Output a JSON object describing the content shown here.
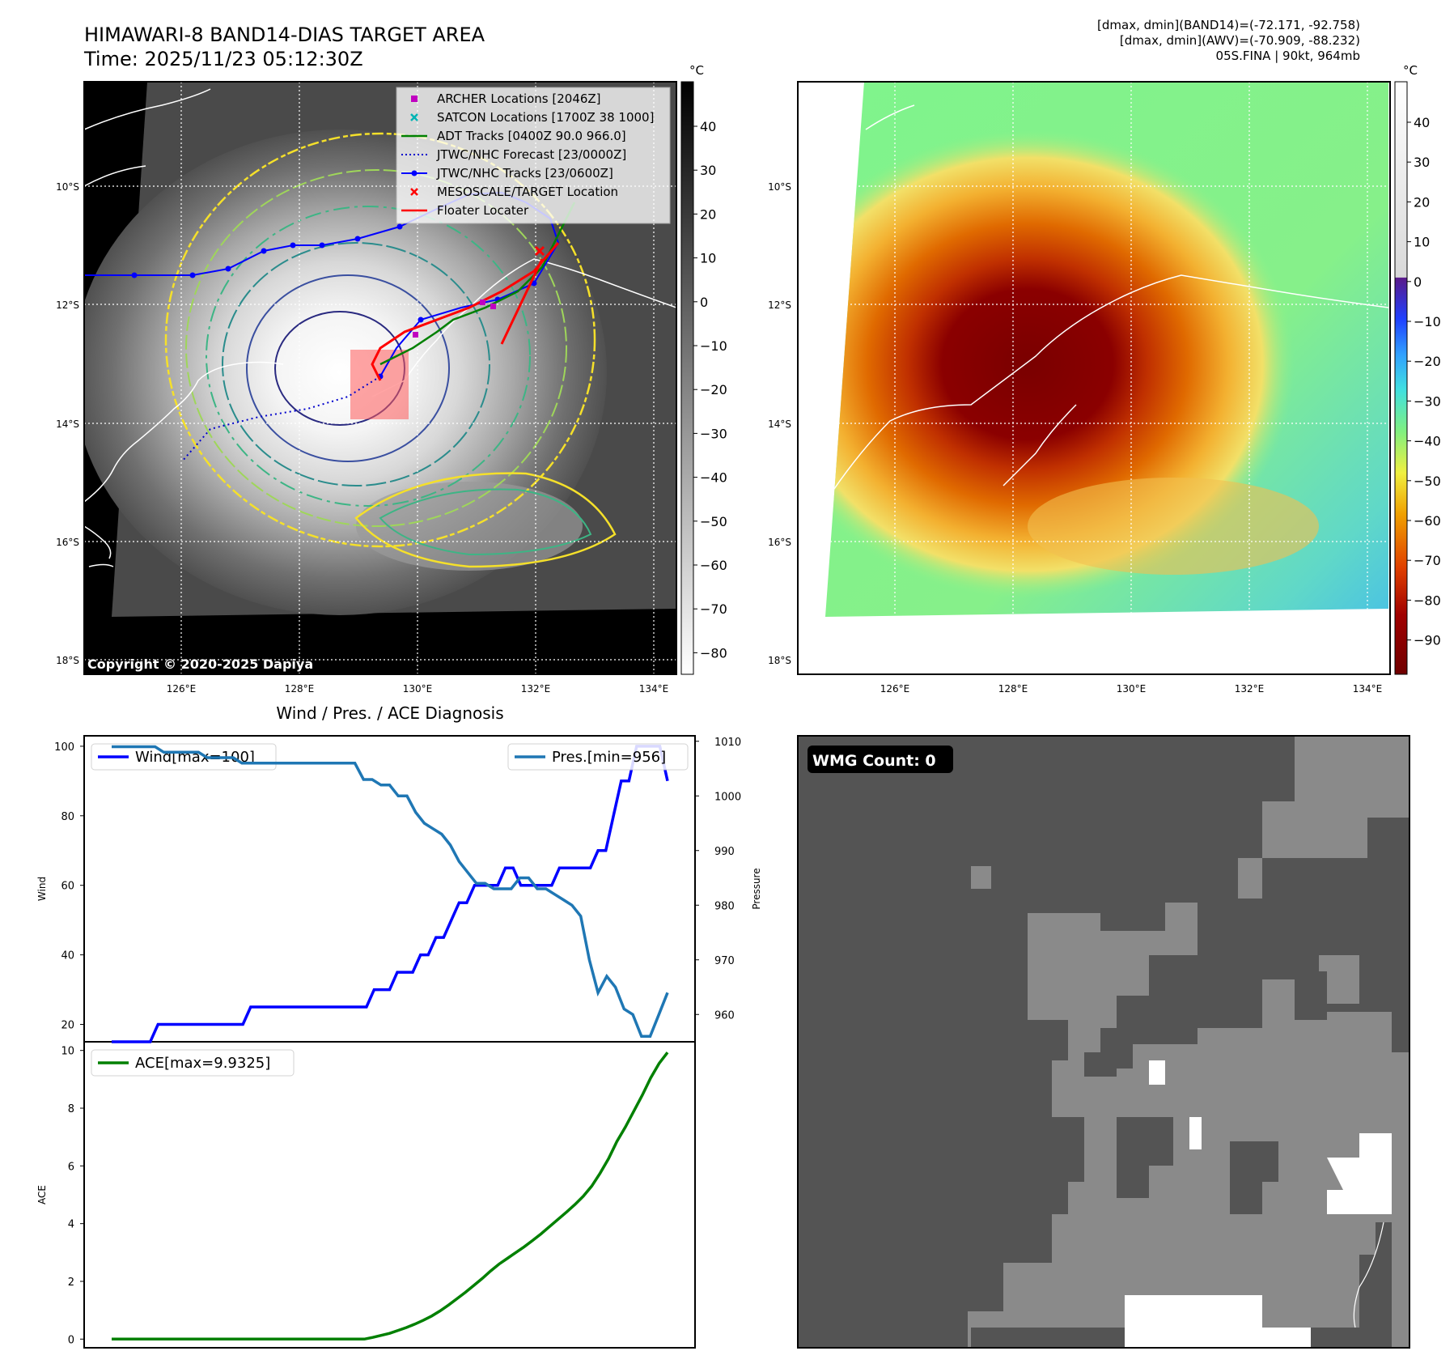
{
  "header": {
    "title_line1": "HIMAWARI-8 BAND14-DIAS TARGET AREA",
    "title_line2": "Time: 2025/11/23 05:12:30Z",
    "stats_line1": "[dmax, dmin](BAND14)=(-72.171, -92.758)",
    "stats_line2": "[dmax, dmin](AWV)=(-70.909, -88.232)",
    "stats_line3": "05S.FINA | 90kt, 964mb"
  },
  "map_left": {
    "lat_labels": [
      "10°S",
      "12°S",
      "14°S",
      "16°S",
      "18°S"
    ],
    "lon_labels": [
      "126°E",
      "128°E",
      "130°E",
      "132°E",
      "134°E"
    ],
    "copyright": "Copyright © 2020-2025 Dapiya",
    "colorbar_unit": "°C",
    "colorbar_ticks": [
      "40",
      "30",
      "20",
      "10",
      "0",
      "−10",
      "−20",
      "−30",
      "−40",
      "−50",
      "−60",
      "−70",
      "−80"
    ],
    "legend": [
      {
        "label": "ARCHER Locations [2046Z]",
        "color": "#c000c0",
        "marker": "square"
      },
      {
        "label": "SATCON Locations [1700Z 38 1000]",
        "color": "#00b4b4",
        "marker": "x"
      },
      {
        "label": "ADT Tracks [0400Z 90.0 966.0]",
        "color": "#008000",
        "marker": "line"
      },
      {
        "label": "JTWC/NHC Forecast [23/0000Z]",
        "color": "#0000cc",
        "marker": "dotted"
      },
      {
        "label": "JTWC/NHC Tracks [23/0600Z]",
        "color": "#0000ff",
        "marker": "line-dot"
      },
      {
        "label": "MESOSCALE/TARGET Location",
        "color": "#ff0000",
        "marker": "x"
      },
      {
        "label": "Floater Locater",
        "color": "#ff0000",
        "marker": "line"
      }
    ]
  },
  "map_right": {
    "lat_labels": [
      "10°S",
      "12°S",
      "14°S",
      "16°S",
      "18°S"
    ],
    "lon_labels": [
      "126°E",
      "128°E",
      "130°E",
      "132°E",
      "134°E"
    ],
    "colorbar_unit": "°C",
    "colorbar_ticks": [
      "40",
      "30",
      "20",
      "10",
      "0",
      "−10",
      "−20",
      "−30",
      "−40",
      "−50",
      "−60",
      "−70",
      "−80",
      "−90"
    ]
  },
  "wmg": {
    "label": "WMG Count: 0"
  },
  "chart_data": [
    {
      "type": "line",
      "title": "Wind / Pres. / ACE Diagnosis",
      "ylabel": "Wind",
      "ylim": [
        15,
        103
      ],
      "yticks": [
        20,
        40,
        60,
        80,
        100
      ],
      "legend": "Wind[max=100]",
      "color": "#0000ff",
      "values": [
        15,
        15,
        15,
        15,
        15,
        15,
        20,
        20,
        20,
        20,
        20,
        20,
        20,
        20,
        20,
        20,
        20,
        20,
        25,
        25,
        25,
        25,
        25,
        25,
        25,
        25,
        25,
        25,
        25,
        25,
        25,
        25,
        25,
        25,
        30,
        30,
        30,
        35,
        35,
        35,
        40,
        40,
        45,
        45,
        50,
        55,
        55,
        60,
        60,
        60,
        60,
        65,
        65,
        60,
        60,
        60,
        60,
        60,
        65,
        65,
        65,
        65,
        65,
        70,
        70,
        80,
        90,
        90,
        100,
        100,
        100,
        100,
        90
      ]
    },
    {
      "type": "line",
      "ylabel": "Pressure",
      "ylim": [
        955,
        1011
      ],
      "yticks": [
        960,
        970,
        980,
        990,
        1000,
        1010
      ],
      "legend": "Pres.[min=956]",
      "color": "#1f77b4",
      "values": [
        1009,
        1009,
        1009,
        1009,
        1009,
        1009,
        1008,
        1008,
        1008,
        1008,
        1008,
        1007,
        1007,
        1007,
        1007,
        1006,
        1006,
        1006,
        1006,
        1006,
        1006,
        1006,
        1006,
        1006,
        1006,
        1006,
        1006,
        1006,
        1006,
        1003,
        1003,
        1002,
        1002,
        1000,
        1000,
        997,
        995,
        994,
        993,
        991,
        988,
        986,
        984,
        984,
        983,
        983,
        983,
        985,
        985,
        983,
        983,
        982,
        981,
        980,
        978,
        970,
        964,
        967,
        965,
        961,
        960,
        956,
        956,
        960,
        964
      ]
    },
    {
      "type": "line",
      "ylabel": "ACE",
      "ylim": [
        -0.3,
        10.3
      ],
      "yticks": [
        0,
        2,
        4,
        6,
        8,
        10
      ],
      "legend": "ACE[max=9.9325]",
      "color": "#008000",
      "values": [
        0,
        0,
        0,
        0,
        0,
        0,
        0,
        0,
        0,
        0,
        0,
        0,
        0,
        0,
        0,
        0,
        0,
        0,
        0,
        0,
        0,
        0,
        0,
        0,
        0,
        0,
        0,
        0,
        0,
        0,
        0,
        0.06,
        0.13,
        0.2,
        0.3,
        0.4,
        0.52,
        0.65,
        0.8,
        0.98,
        1.18,
        1.4,
        1.62,
        1.86,
        2.1,
        2.36,
        2.6,
        2.8,
        3.0,
        3.2,
        3.42,
        3.65,
        3.9,
        4.15,
        4.4,
        4.66,
        4.95,
        5.3,
        5.75,
        6.25,
        6.85,
        7.35,
        7.9,
        8.45,
        9.05,
        9.55,
        9.93
      ]
    }
  ]
}
